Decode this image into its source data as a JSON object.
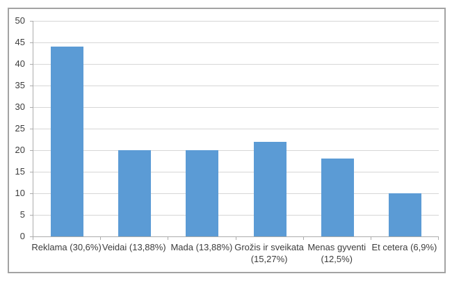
{
  "chart_data": {
    "type": "bar",
    "title": "",
    "xlabel": "",
    "ylabel": "",
    "categories": [
      {
        "label": "Reklama (30,6%)",
        "lines": [
          "Reklama (30,6%)"
        ]
      },
      {
        "label": "Veidai (13,88%)",
        "lines": [
          "Veidai (13,88%)"
        ]
      },
      {
        "label": "Mada (13,88%)",
        "lines": [
          "Mada (13,88%)"
        ]
      },
      {
        "label": "Grožis ir sveikata (15,27%)",
        "lines": [
          "Grožis ir sveikata",
          "(15,27%)"
        ]
      },
      {
        "label": "Menas gyventi (12,5%)",
        "lines": [
          "Menas gyventi",
          "(12,5%)"
        ]
      },
      {
        "label": "Et cetera (6,9%)",
        "lines": [
          "Et cetera (6,9%)"
        ]
      }
    ],
    "values": [
      44,
      20,
      20,
      22,
      18,
      10
    ],
    "ylim": [
      0,
      50
    ],
    "ytick_step": 5,
    "ytick_labels": [
      "0",
      "5",
      "10",
      "15",
      "20",
      "25",
      "30",
      "35",
      "40",
      "45",
      "50"
    ],
    "grid": true,
    "legend": false,
    "colors": {
      "bar": "#5b9bd5",
      "gridline": "#d6d6d6",
      "axis": "#ababab",
      "text": "#3c3c3c",
      "frame_border": "#a3a3a3",
      "background": "#ffffff"
    }
  }
}
